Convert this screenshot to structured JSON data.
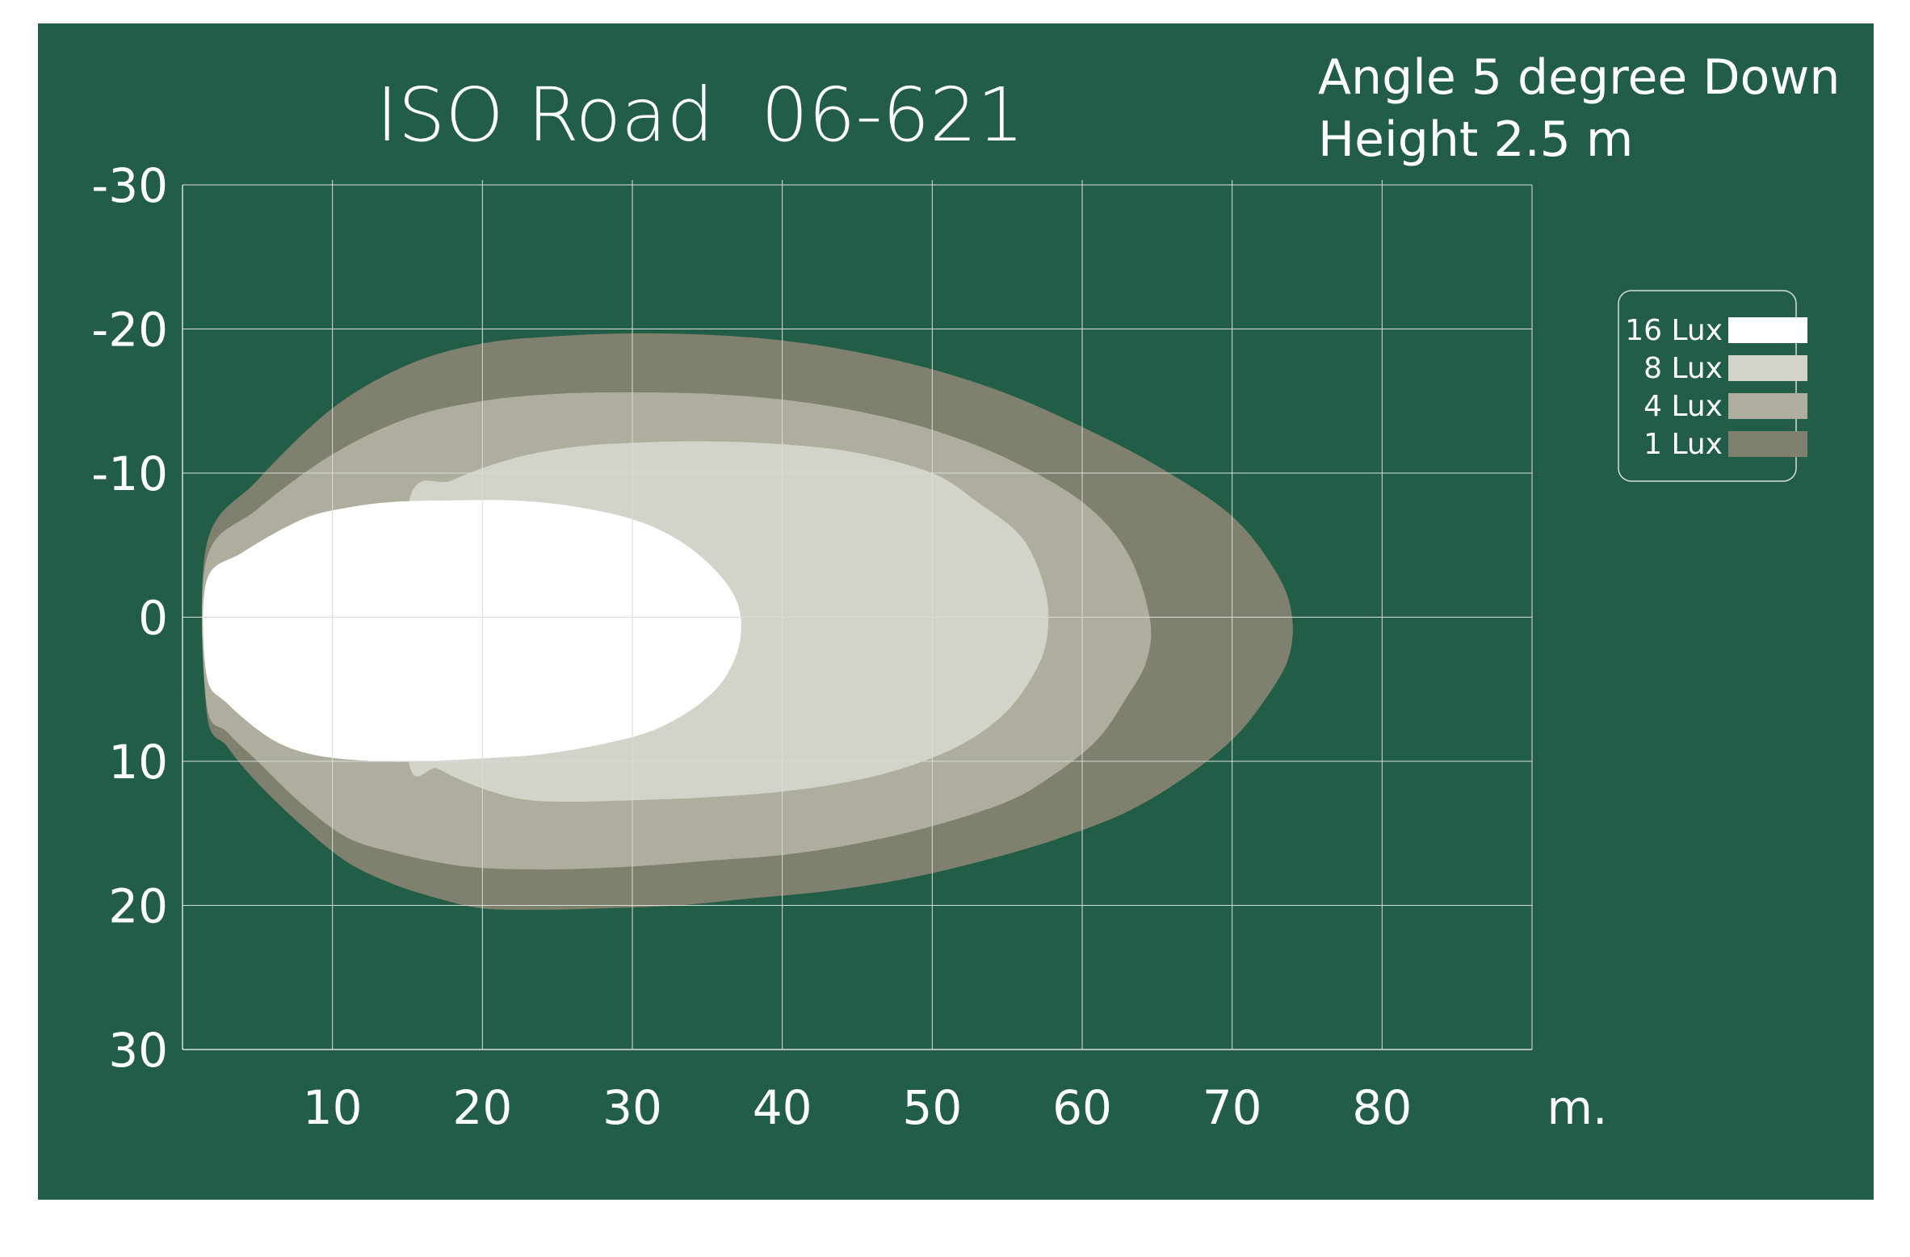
{
  "chart_data": {
    "type": "area",
    "title": "ISO Road  06-621",
    "annotations": [
      "Angle 5 degree Down",
      "Height 2.5 m"
    ],
    "xlabel": "m.",
    "ylabel": "",
    "x_ticks": [
      "10",
      "20",
      "30",
      "40",
      "50",
      "60",
      "70",
      "80"
    ],
    "y_ticks": [
      "-30",
      "-20",
      "-10",
      "0",
      "10",
      "20",
      "30"
    ],
    "xlim": [
      0,
      90
    ],
    "ylim": [
      -30,
      30
    ],
    "grid": true,
    "legend_position": "right",
    "series": [
      {
        "name": "1 Lux",
        "color": "#7f806d",
        "points": [
          [
            1.6,
            -5
          ],
          [
            5,
            -9.5
          ],
          [
            10,
            -14.5
          ],
          [
            15,
            -17.5
          ],
          [
            20,
            -19
          ],
          [
            25,
            -19.5
          ],
          [
            30,
            -19.7
          ],
          [
            35,
            -19.6
          ],
          [
            40,
            -19.2
          ],
          [
            45,
            -18.4
          ],
          [
            50,
            -17.2
          ],
          [
            55,
            -15.5
          ],
          [
            60,
            -13.2
          ],
          [
            65,
            -10.5
          ],
          [
            70,
            -7
          ],
          [
            73,
            -3
          ],
          [
            74,
            0
          ],
          [
            73.7,
            3
          ],
          [
            72,
            6
          ],
          [
            70,
            8.5
          ],
          [
            67,
            11
          ],
          [
            63,
            13.5
          ],
          [
            58,
            15.5
          ],
          [
            53,
            17
          ],
          [
            48,
            18.2
          ],
          [
            43,
            19
          ],
          [
            38,
            19.5
          ],
          [
            33,
            20
          ],
          [
            28,
            20.2
          ],
          [
            24,
            20.3
          ],
          [
            20,
            20.2
          ],
          [
            17,
            19.5
          ],
          [
            14,
            18.5
          ],
          [
            11,
            17
          ],
          [
            8,
            14.5
          ],
          [
            5,
            11.5
          ],
          [
            3,
            9
          ],
          [
            1.6,
            6.5
          ]
        ]
      },
      {
        "name": "4 Lux",
        "color": "#afae9e",
        "points": [
          [
            1.6,
            -4
          ],
          [
            5,
            -7.5
          ],
          [
            10,
            -11.3
          ],
          [
            15,
            -13.8
          ],
          [
            20,
            -15
          ],
          [
            25,
            -15.5
          ],
          [
            30,
            -15.6
          ],
          [
            35,
            -15.5
          ],
          [
            40,
            -15.1
          ],
          [
            45,
            -14.3
          ],
          [
            50,
            -13
          ],
          [
            55,
            -11
          ],
          [
            60,
            -8
          ],
          [
            63,
            -4.5
          ],
          [
            64.5,
            0
          ],
          [
            64.3,
            3
          ],
          [
            63,
            5.5
          ],
          [
            61,
            8.5
          ],
          [
            58,
            11
          ],
          [
            55,
            12.8
          ],
          [
            50,
            14.5
          ],
          [
            45,
            15.7
          ],
          [
            40,
            16.5
          ],
          [
            35,
            16.9
          ],
          [
            30,
            17.3
          ],
          [
            25,
            17.5
          ],
          [
            20,
            17.4
          ],
          [
            17,
            17
          ],
          [
            14,
            16.3
          ],
          [
            11,
            15.3
          ],
          [
            8,
            13
          ],
          [
            5,
            10
          ],
          [
            3,
            8
          ],
          [
            1.6,
            6
          ]
        ]
      },
      {
        "name": "8 Lux",
        "color": "#d2d3c9",
        "points": [
          [
            15,
            -7.5
          ],
          [
            18,
            -9.5
          ],
          [
            22,
            -11
          ],
          [
            26,
            -11.8
          ],
          [
            30,
            -12.1
          ],
          [
            35,
            -12.2
          ],
          [
            40,
            -12
          ],
          [
            45,
            -11.4
          ],
          [
            50,
            -10
          ],
          [
            53,
            -8
          ],
          [
            56,
            -5.5
          ],
          [
            57.5,
            -2
          ],
          [
            57.7,
            1
          ],
          [
            57,
            3.5
          ],
          [
            55,
            6.5
          ],
          [
            52,
            8.8
          ],
          [
            48,
            10.5
          ],
          [
            44,
            11.5
          ],
          [
            40,
            12.1
          ],
          [
            35,
            12.5
          ],
          [
            30,
            12.7
          ],
          [
            25,
            12.8
          ],
          [
            22,
            12.5
          ],
          [
            19,
            11.5
          ],
          [
            17,
            10.5
          ],
          [
            15,
            9.5
          ]
        ]
      },
      {
        "name": "16 Lux",
        "color": "#ffffff",
        "points": [
          [
            1.6,
            -2.5
          ],
          [
            4,
            -4.5
          ],
          [
            8,
            -6.8
          ],
          [
            11,
            -7.6
          ],
          [
            14,
            -8
          ],
          [
            18,
            -8.1
          ],
          [
            22,
            -8.1
          ],
          [
            26,
            -7.7
          ],
          [
            30,
            -6.8
          ],
          [
            33,
            -5.4
          ],
          [
            35.5,
            -3.3
          ],
          [
            37,
            -1
          ],
          [
            37.2,
            1.5
          ],
          [
            36.3,
            4
          ],
          [
            34.5,
            6
          ],
          [
            31.5,
            7.8
          ],
          [
            28,
            8.8
          ],
          [
            24,
            9.5
          ],
          [
            20,
            9.8
          ],
          [
            16,
            10
          ],
          [
            13,
            10
          ],
          [
            9,
            9.6
          ],
          [
            6,
            8.5
          ],
          [
            3,
            6
          ],
          [
            1.6,
            4
          ]
        ]
      }
    ]
  },
  "legend": {
    "items": [
      {
        "label": "16 Lux",
        "color": "#ffffff"
      },
      {
        "label": "8 Lux",
        "color": "#d2d3c9"
      },
      {
        "label": "4 Lux",
        "color": "#afae9e"
      },
      {
        "label": "1 Lux",
        "color": "#7f806d"
      }
    ]
  },
  "colors": {
    "background": "#225e47",
    "grid": "#d8ddd8",
    "text": "#ffffff"
  }
}
